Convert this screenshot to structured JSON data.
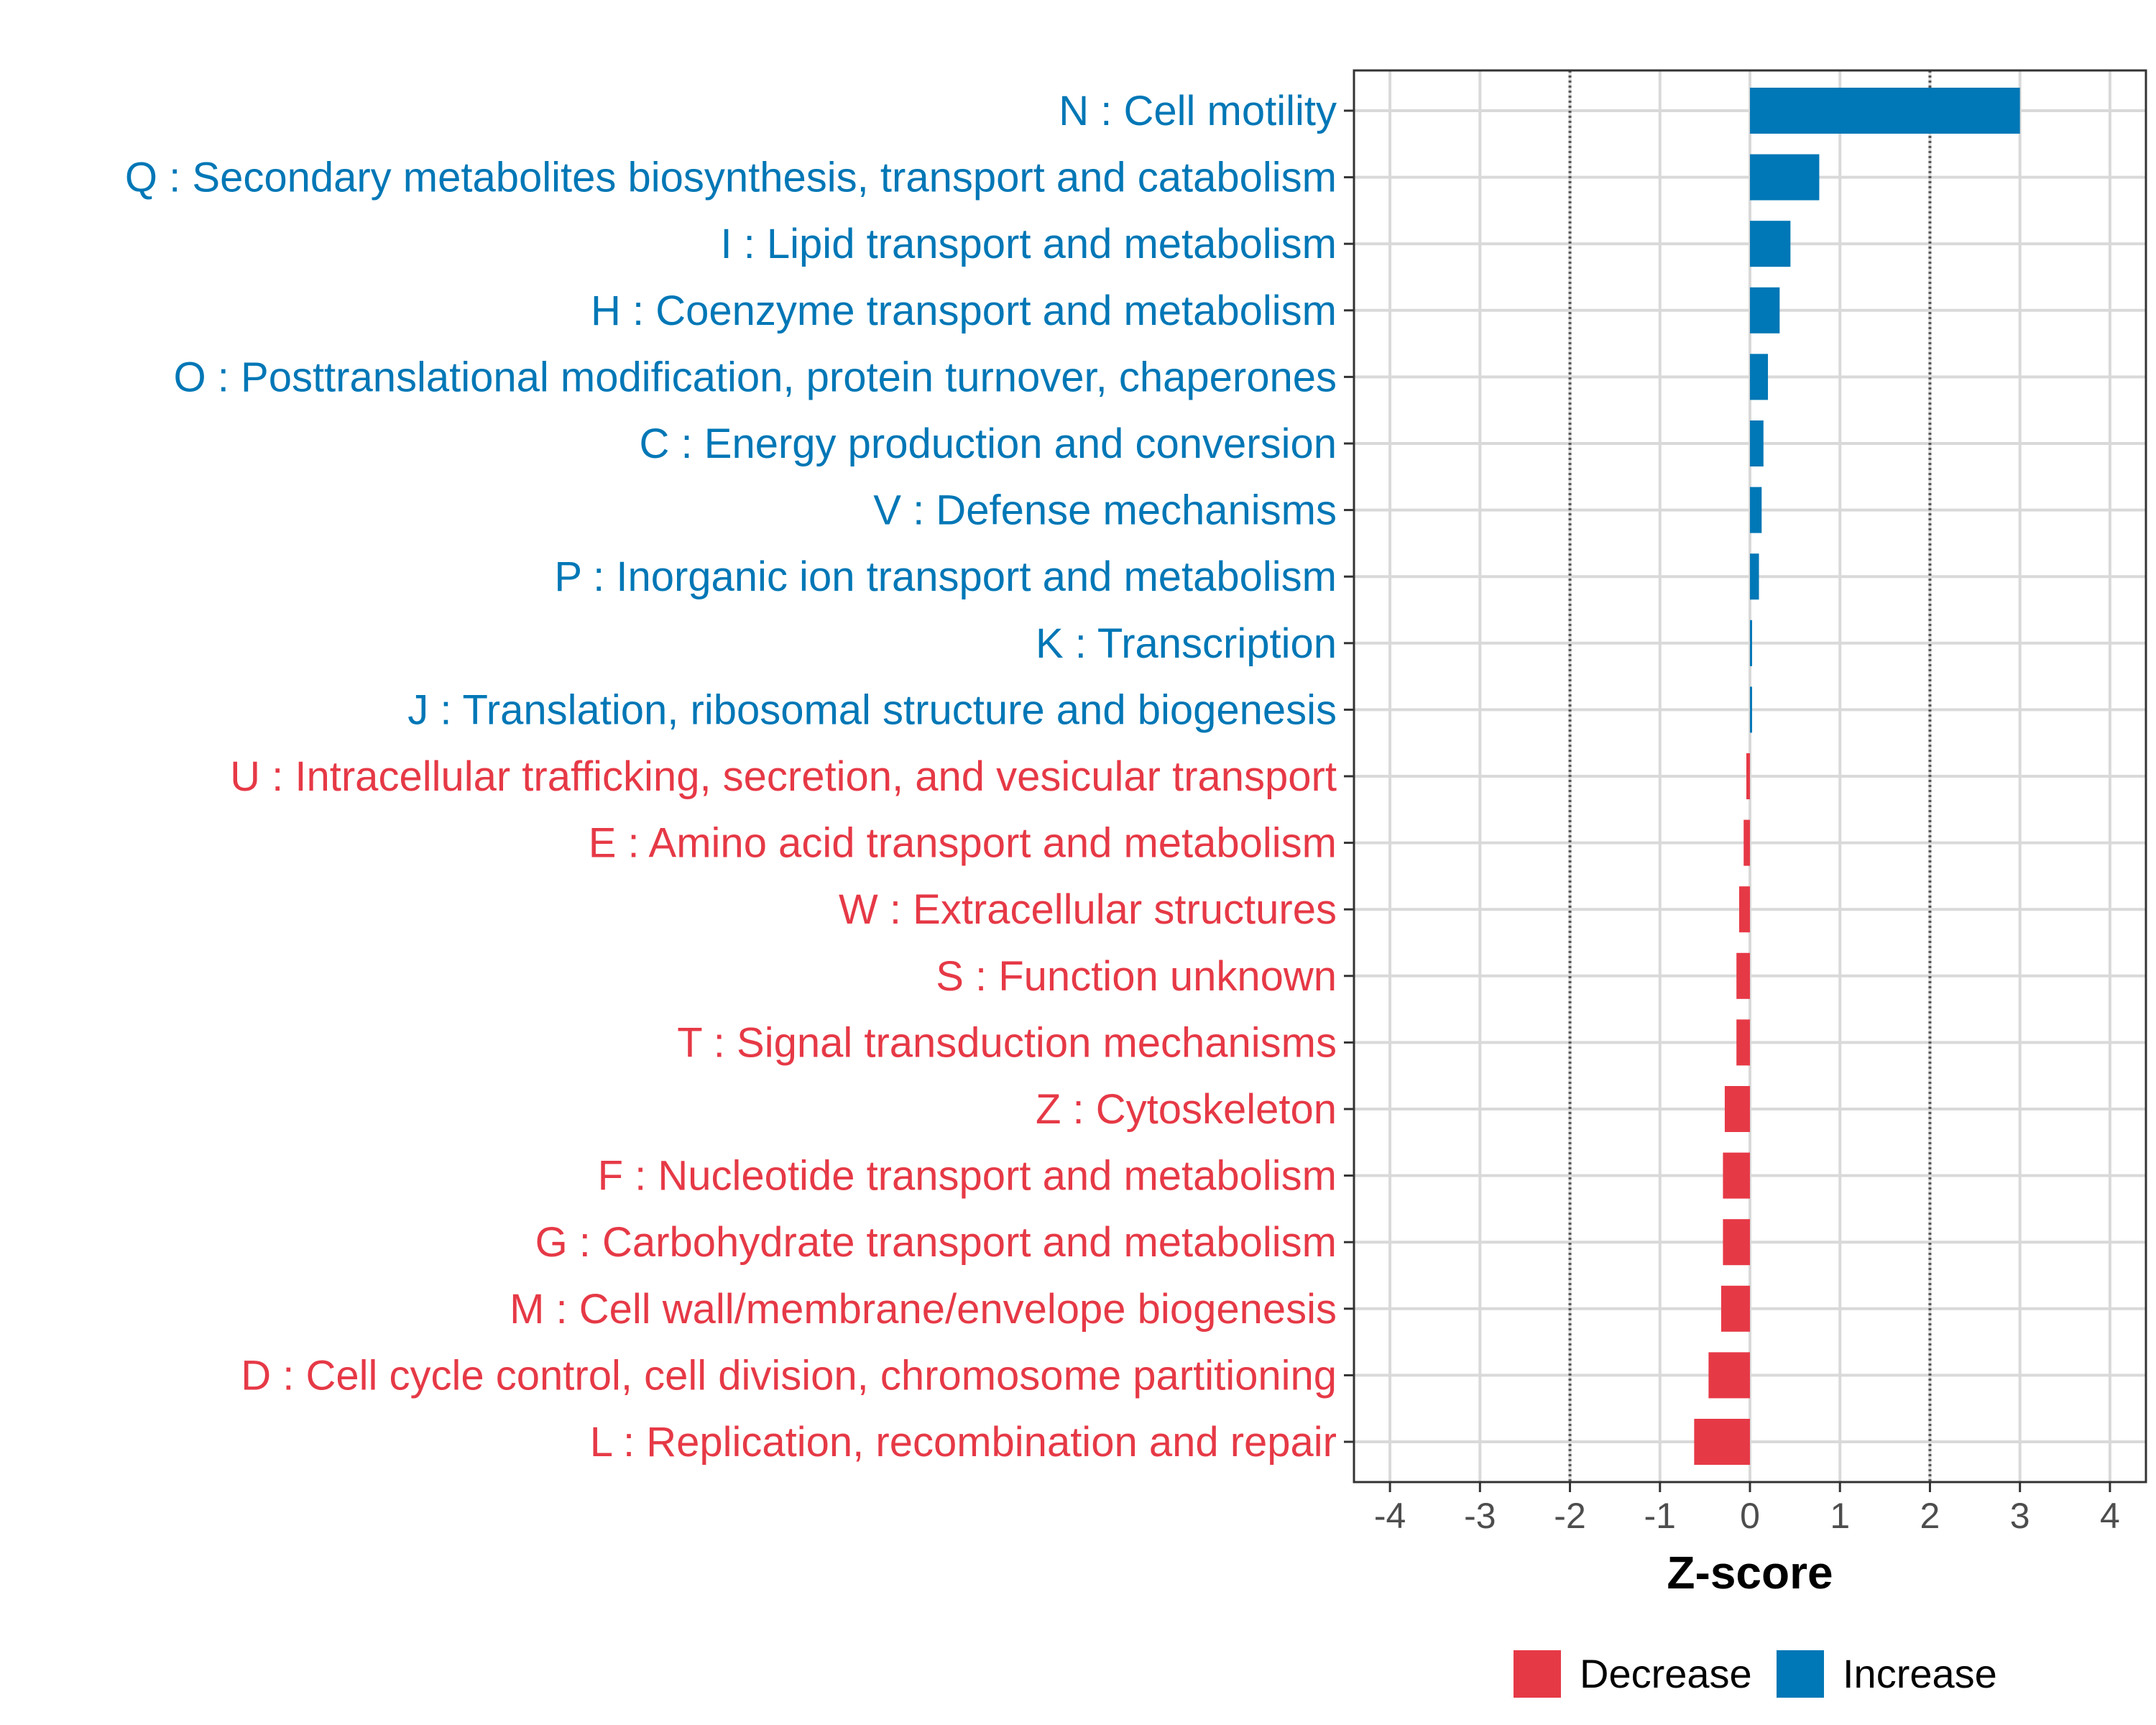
{
  "chart_data": {
    "type": "bar",
    "orientation": "horizontal",
    "title": "",
    "xlabel": "Z-score",
    "ylabel": "",
    "xlim": [
      -4.4,
      4.4
    ],
    "xticks": [
      -4,
      -3,
      -2,
      -1,
      0,
      1,
      2,
      3,
      4
    ],
    "reference_lines": [
      -2,
      2
    ],
    "grid": true,
    "legend_position": "bottom",
    "colors": {
      "Decrease": "#E63946",
      "Increase": "#0077B6"
    },
    "legend": [
      {
        "label": "Decrease",
        "group": "Decrease"
      },
      {
        "label": "Increase",
        "group": "Increase"
      }
    ],
    "categories": [
      "N : Cell motility",
      "Q : Secondary metabolites biosynthesis, transport and catabolism",
      "I : Lipid transport and metabolism",
      "H : Coenzyme transport and metabolism",
      "O : Posttranslational modification, protein turnover, chaperones",
      "C : Energy production and conversion",
      "V : Defense mechanisms",
      "P : Inorganic ion transport and metabolism",
      "K : Transcription",
      "J : Translation, ribosomal structure and biogenesis",
      "U : Intracellular trafficking, secretion, and vesicular transport",
      "E : Amino acid transport and metabolism",
      "W : Extracellular structures",
      "S : Function unknown",
      "T : Signal transduction mechanisms",
      "Z : Cytoskeleton",
      "F : Nucleotide transport and metabolism",
      "G : Carbohydrate transport and metabolism",
      "M : Cell wall/membrane/envelope biogenesis",
      "D : Cell cycle control, cell division, chromosome partitioning",
      "L : Replication, recombination and repair"
    ],
    "values": [
      3.0,
      0.77,
      0.45,
      0.33,
      0.2,
      0.15,
      0.13,
      0.1,
      0.02,
      0.02,
      -0.04,
      -0.07,
      -0.12,
      -0.15,
      -0.15,
      -0.28,
      -0.3,
      -0.3,
      -0.32,
      -0.46,
      -0.62
    ],
    "groups": [
      "Increase",
      "Increase",
      "Increase",
      "Increase",
      "Increase",
      "Increase",
      "Increase",
      "Increase",
      "Increase",
      "Increase",
      "Decrease",
      "Decrease",
      "Decrease",
      "Decrease",
      "Decrease",
      "Decrease",
      "Decrease",
      "Decrease",
      "Decrease",
      "Decrease",
      "Decrease"
    ]
  }
}
